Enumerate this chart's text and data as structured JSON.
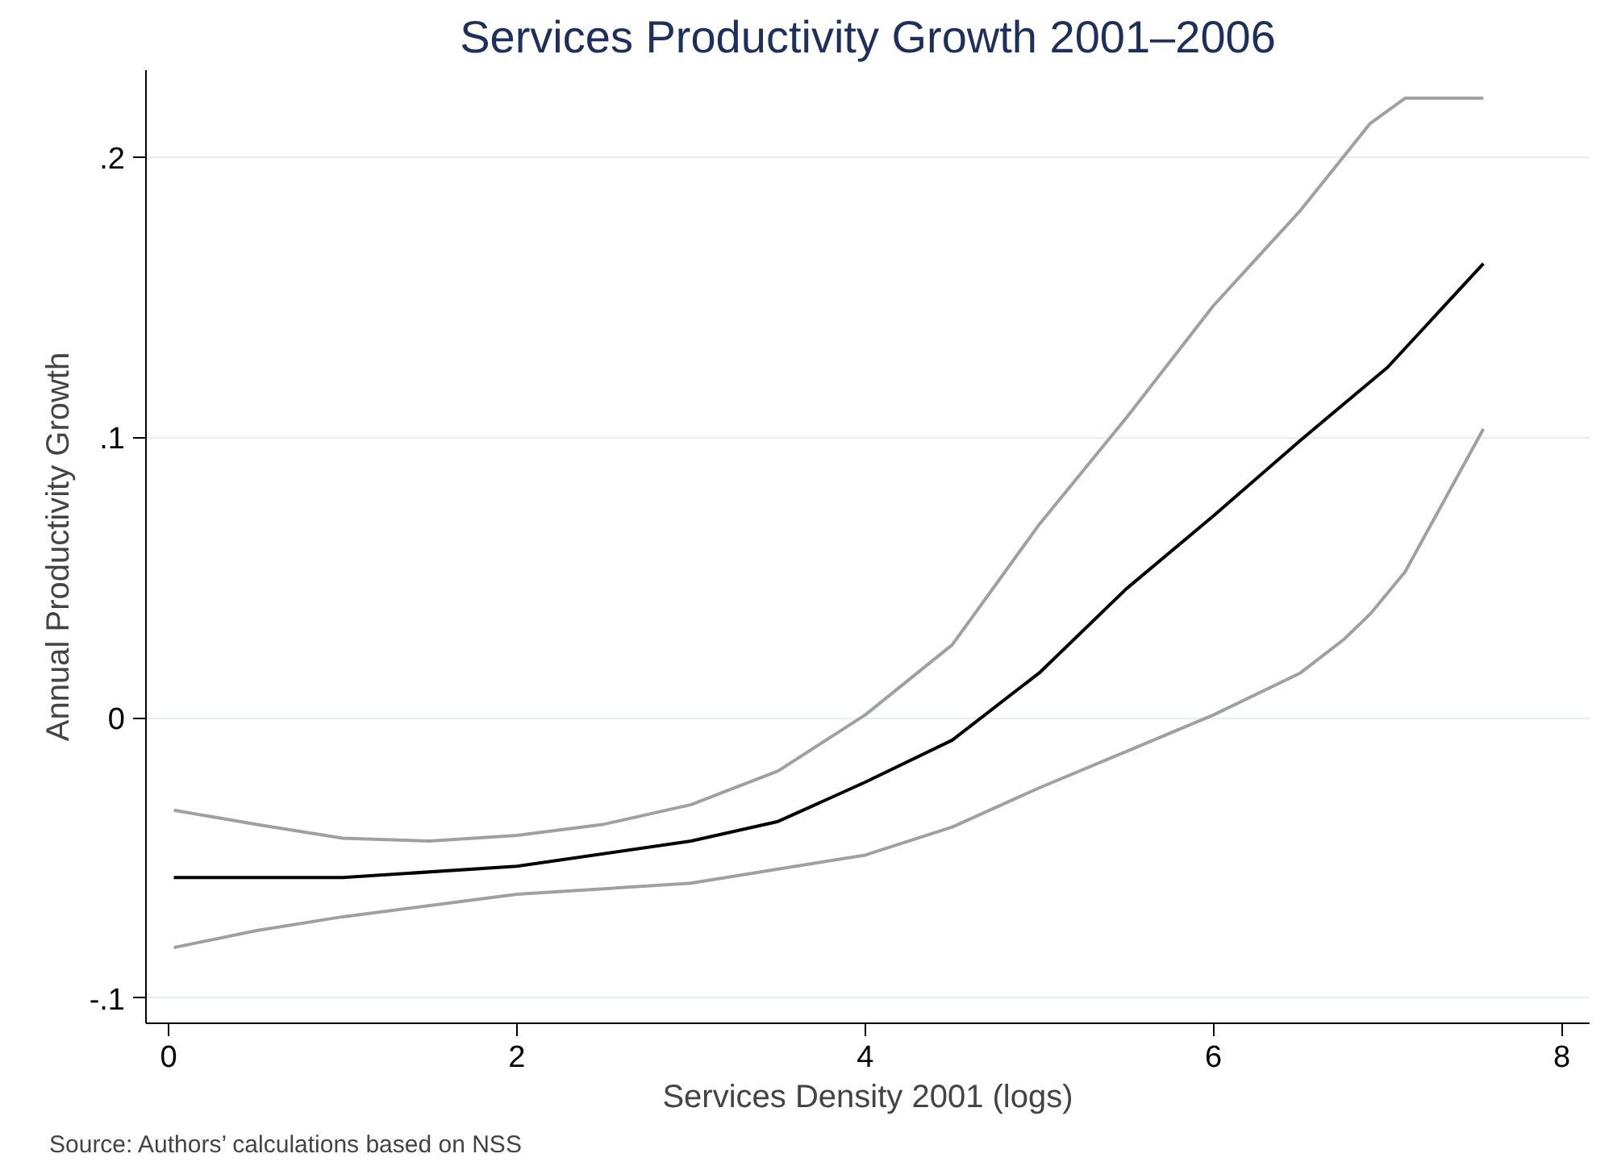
{
  "chart_data": {
    "type": "line",
    "title": "Services Productivity Growth 2001–2006",
    "xlabel": "Services Density 2001 (logs)",
    "ylabel": "Annual Productivity Growth",
    "annotations": [
      "Source: Authors’ calculations based on NSS"
    ],
    "xlim": [
      -0.13,
      8.16
    ],
    "ylim": [
      -0.109,
      0.231
    ],
    "xticks": [
      0,
      2,
      4,
      6,
      8
    ],
    "yticks": [
      {
        "value": -0.1,
        "label": "-.1"
      },
      0,
      {
        "value": 0.1,
        "label": ".1"
      },
      {
        "value": 0.2,
        "label": ".2"
      }
    ],
    "grid": "y",
    "marker": "none",
    "line_style": "solid",
    "series": [
      {
        "color": "#a0a0a0",
        "x": [
          0.03,
          0.5,
          1,
          1.5,
          2,
          2.5,
          3,
          3.5,
          4,
          4.5,
          5,
          5.5,
          6,
          6.5,
          6.9,
          7.1,
          7.55
        ],
        "values": [
          -0.033,
          -0.038,
          -0.043,
          -0.044,
          -0.042,
          -0.038,
          -0.031,
          -0.019,
          0.001,
          0.026,
          0.069,
          0.107,
          0.147,
          0.181,
          0.212,
          0.221,
          0.221
        ]
      },
      {
        "color": "#a0a0a0",
        "x": [
          0.03,
          0.5,
          1,
          1.5,
          2,
          3,
          3.5,
          4,
          4.5,
          5,
          5.5,
          6,
          6.5,
          6.75,
          6.9,
          7.1,
          7.55
        ],
        "values": [
          -0.082,
          -0.076,
          -0.071,
          -0.067,
          -0.063,
          -0.059,
          -0.054,
          -0.049,
          -0.039,
          -0.025,
          -0.012,
          0.001,
          0.016,
          0.028,
          0.037,
          0.052,
          0.103
        ]
      },
      {
        "color": "#000000",
        "x": [
          0.03,
          1,
          2,
          3,
          3.5,
          4,
          4.5,
          5,
          5.5,
          6,
          6.5,
          7,
          7.55
        ],
        "values": [
          -0.057,
          -0.057,
          -0.053,
          -0.044,
          -0.037,
          -0.023,
          -0.008,
          0.016,
          0.046,
          0.072,
          0.099,
          0.125,
          0.162
        ]
      }
    ]
  }
}
